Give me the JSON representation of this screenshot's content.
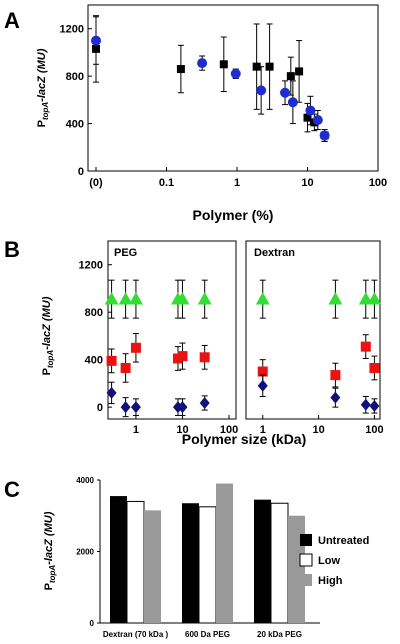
{
  "chart_data": [
    {
      "panel": "A",
      "type": "scatter",
      "xlabel": "Polymer (%)",
      "ylabel_main": "P",
      "ylabel_sub": "topA",
      "ylabel_rest": "-lacZ (MU)",
      "ylim": [
        0,
        1400
      ],
      "yticks": [
        "0",
        "400",
        "800",
        "1200"
      ],
      "xscale": "log",
      "xticks": [
        "(0)",
        "0.1",
        "1",
        "10",
        "100"
      ],
      "grid": false,
      "series": [
        {
          "marker": "square",
          "color": "#000000",
          "x": [
            0.01,
            0.16,
            0.65,
            1.9,
            2.9,
            5.8,
            7.6,
            10,
            12.5,
            17.5
          ],
          "y": [
            1030,
            860,
            900,
            880,
            880,
            800,
            840,
            450,
            410,
            300
          ],
          "err": [
            280,
            200,
            230,
            360,
            360,
            160,
            260,
            120,
            70,
            50
          ]
        },
        {
          "marker": "circle",
          "color": "#1f2ccf",
          "x": [
            0.01,
            0.32,
            0.96,
            2.2,
            4.8,
            6.2,
            11,
            14,
            17.5
          ],
          "y": [
            1100,
            910,
            820,
            680,
            660,
            580,
            510,
            430,
            300
          ],
          "err": [
            200,
            60,
            40,
            200,
            100,
            180,
            120,
            80,
            50
          ]
        }
      ]
    },
    {
      "panel": "B",
      "type": "scatter",
      "xlabel": "Polymer size (kDa)",
      "ylabel_main": "P",
      "ylabel_sub": "topA",
      "ylabel_rest": "-lacZ (MU)",
      "ylim": [
        -100,
        1400
      ],
      "yticks": [
        "0",
        "400",
        "800",
        "1200"
      ],
      "subpanels": [
        {
          "title": "PEG",
          "xticks": [
            "1",
            "10",
            "100"
          ],
          "series": [
            {
              "marker": "triangle",
              "color": "#33dd33",
              "x": [
                0.3,
                0.6,
                1,
                8,
                10,
                30
              ],
              "y": [
                910,
                910,
                910,
                910,
                910,
                910
              ],
              "err": [
                160,
                160,
                160,
                160,
                160,
                160
              ]
            },
            {
              "marker": "square",
              "color": "#ee1111",
              "x": [
                0.3,
                0.6,
                1,
                8,
                10,
                30
              ],
              "y": [
                390,
                330,
                500,
                410,
                430,
                420
              ],
              "err": [
                100,
                120,
                120,
                100,
                110,
                100
              ]
            },
            {
              "marker": "diamond",
              "color": "#10127a",
              "x": [
                0.3,
                0.6,
                1,
                8,
                10,
                30
              ],
              "y": [
                120,
                0,
                0,
                0,
                0,
                35
              ],
              "err": [
                90,
                80,
                70,
                70,
                70,
                60
              ]
            }
          ]
        },
        {
          "title": "Dextran",
          "xticks": [
            "1",
            "10",
            "100"
          ],
          "series": [
            {
              "marker": "triangle",
              "color": "#33dd33",
              "x": [
                1,
                20,
                70,
                100
              ],
              "y": [
                910,
                910,
                910,
                910
              ],
              "err": [
                160,
                160,
                160,
                160
              ]
            },
            {
              "marker": "square",
              "color": "#ee1111",
              "x": [
                1,
                20,
                70,
                100
              ],
              "y": [
                300,
                270,
                510,
                330
              ],
              "err": [
                100,
                100,
                100,
                100
              ]
            },
            {
              "marker": "diamond",
              "color": "#10127a",
              "x": [
                1,
                20,
                70,
                100
              ],
              "y": [
                180,
                80,
                20,
                10
              ],
              "err": [
                90,
                80,
                70,
                60
              ]
            }
          ]
        }
      ]
    },
    {
      "panel": "C",
      "type": "bar",
      "ylabel_main": "P",
      "ylabel_sub": "topA",
      "ylabel_rest": "-lacZ (MU)",
      "ylim": [
        0,
        4000
      ],
      "yticks": [
        "0",
        "2000",
        "4000"
      ],
      "categories": [
        "Dextran (70 kDa )",
        "600 Da PEG",
        "20 kDa PEG"
      ],
      "series": [
        {
          "name": "Untreated",
          "color": "#000000",
          "values": [
            3550,
            3350,
            3450
          ]
        },
        {
          "name": "Low",
          "color": "#ffffff",
          "values": [
            3400,
            3250,
            3350
          ]
        },
        {
          "name": "High",
          "color": "#999999",
          "values": [
            3150,
            3900,
            3000
          ]
        }
      ],
      "legend": "right"
    }
  ],
  "panel_letters": [
    "A",
    "B",
    "C"
  ]
}
